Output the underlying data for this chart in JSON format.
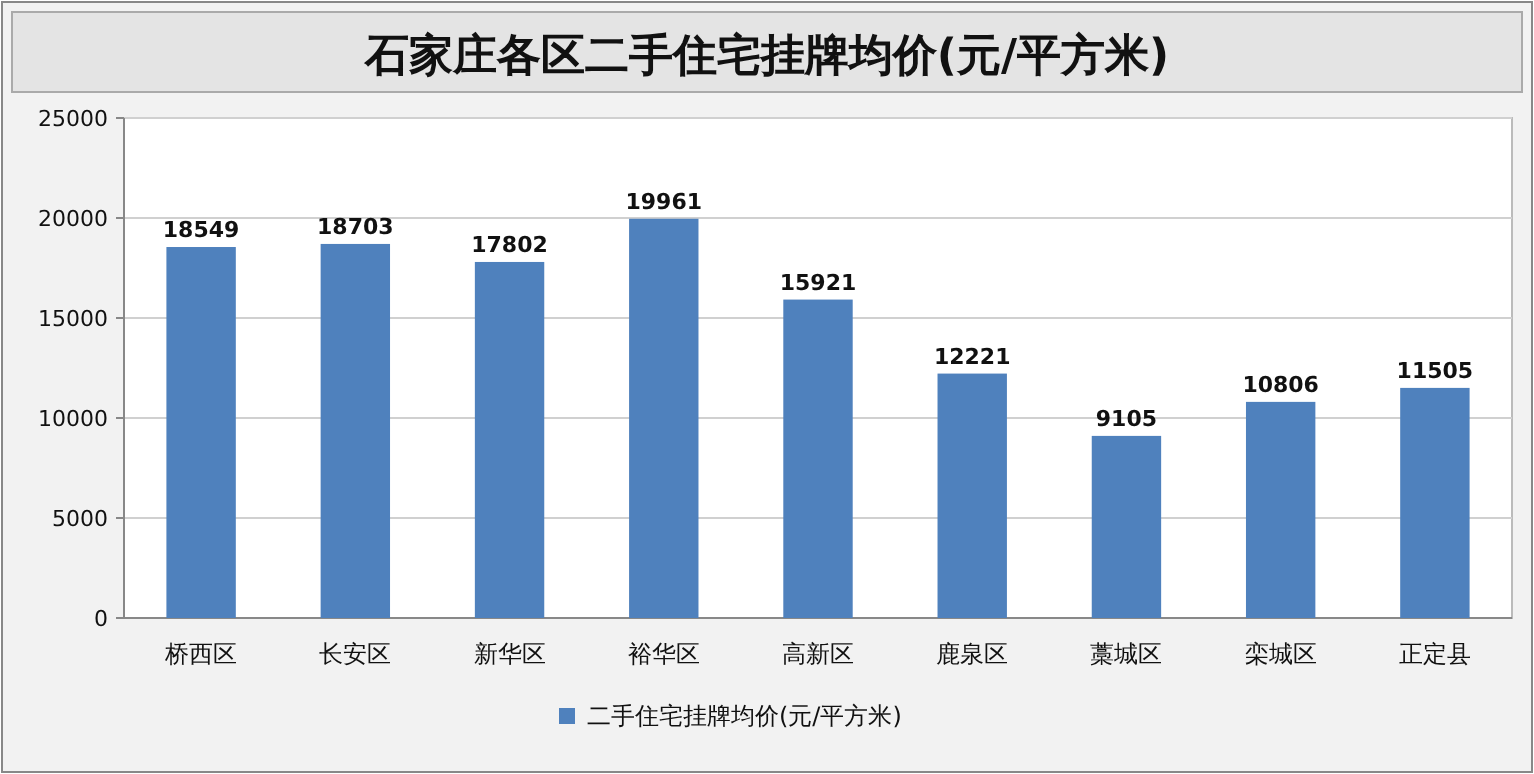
{
  "chart_data": {
    "type": "bar",
    "title": "石家庄各区二手住宅挂牌均价(元/平方米)",
    "categories": [
      "桥西区",
      "长安区",
      "新华区",
      "裕华区",
      "高新区",
      "鹿泉区",
      "藁城区",
      "栾城区",
      "正定县"
    ],
    "series": [
      {
        "name": "二手住宅挂牌均价(元/平方米)",
        "color": "#4f81bd",
        "values": [
          18549,
          18703,
          17802,
          19961,
          15921,
          12221,
          9105,
          10806,
          11505
        ]
      }
    ],
    "ylim": [
      0,
      25000
    ],
    "yticks": [
      0,
      5000,
      10000,
      15000,
      20000,
      25000
    ],
    "grid": "y",
    "data_labels": true,
    "legend": "bottom"
  }
}
